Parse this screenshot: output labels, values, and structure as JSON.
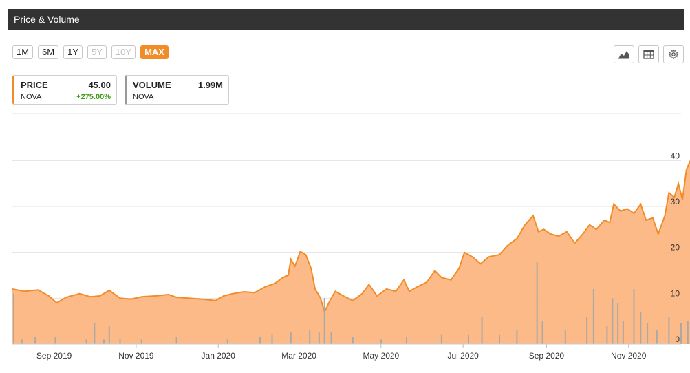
{
  "header": {
    "title": "Price & Volume"
  },
  "ranges": [
    {
      "label": "1M",
      "state": "normal"
    },
    {
      "label": "6M",
      "state": "normal"
    },
    {
      "label": "1Y",
      "state": "normal"
    },
    {
      "label": "5Y",
      "state": "disabled"
    },
    {
      "label": "10Y",
      "state": "disabled"
    },
    {
      "label": "MAX",
      "state": "active"
    }
  ],
  "tools": [
    {
      "name": "area-chart-icon"
    },
    {
      "name": "table-icon"
    },
    {
      "name": "gear-icon"
    }
  ],
  "price_card": {
    "label": "PRICE",
    "value": "45.00",
    "ticker": "NOVA",
    "change": "+275.00%"
  },
  "volume_card": {
    "label": "VOLUME",
    "value": "1.99M",
    "ticker": "NOVA"
  },
  "colors": {
    "price": "#f28c28",
    "price_fill": "#fbb27a",
    "volume": "#a9a9a9",
    "active": "#f28c28",
    "change_up": "#3a9a12"
  },
  "chart_data": {
    "type": "area",
    "xlim": [
      "2019-08-01",
      "2020-12-10"
    ],
    "ylim": [
      0,
      45
    ],
    "y_ticks": [
      0,
      10,
      20,
      30,
      40
    ],
    "x_ticks": [
      {
        "date": "2019-09-01",
        "label": "Sep 2019"
      },
      {
        "date": "2019-11-01",
        "label": "Nov 2019"
      },
      {
        "date": "2020-01-01",
        "label": "Jan 2020"
      },
      {
        "date": "2020-03-01",
        "label": "Mar 2020"
      },
      {
        "date": "2020-05-01",
        "label": "May 2020"
      },
      {
        "date": "2020-07-01",
        "label": "Jul 2020"
      },
      {
        "date": "2020-09-01",
        "label": "Sep 2020"
      },
      {
        "date": "2020-11-01",
        "label": "Nov 2020"
      }
    ],
    "series": [
      {
        "values": [
          [
            "2019-08-01",
            12.0
          ],
          [
            "2019-08-10",
            11.5
          ],
          [
            "2019-08-20",
            11.8
          ],
          [
            "2019-08-28",
            10.5
          ],
          [
            "2019-09-03",
            9.0
          ],
          [
            "2019-09-10",
            10.2
          ],
          [
            "2019-09-20",
            11.0
          ],
          [
            "2019-09-28",
            10.3
          ],
          [
            "2019-10-05",
            10.5
          ],
          [
            "2019-10-12",
            11.7
          ],
          [
            "2019-10-20",
            10.0
          ],
          [
            "2019-10-28",
            9.8
          ],
          [
            "2019-11-05",
            10.3
          ],
          [
            "2019-11-15",
            10.5
          ],
          [
            "2019-11-25",
            10.8
          ],
          [
            "2019-12-01",
            10.2
          ],
          [
            "2019-12-10",
            10.0
          ],
          [
            "2019-12-20",
            9.8
          ],
          [
            "2019-12-30",
            9.5
          ],
          [
            "2020-01-05",
            10.5
          ],
          [
            "2020-01-12",
            11.0
          ],
          [
            "2020-01-20",
            11.4
          ],
          [
            "2020-01-28",
            11.2
          ],
          [
            "2020-02-05",
            12.5
          ],
          [
            "2020-02-12",
            13.2
          ],
          [
            "2020-02-18",
            14.5
          ],
          [
            "2020-02-22",
            15.0
          ],
          [
            "2020-02-24",
            18.5
          ],
          [
            "2020-02-27",
            17.0
          ],
          [
            "2020-03-02",
            20.2
          ],
          [
            "2020-03-06",
            19.5
          ],
          [
            "2020-03-10",
            16.5
          ],
          [
            "2020-03-13",
            12.0
          ],
          [
            "2020-03-17",
            10.0
          ],
          [
            "2020-03-20",
            7.0
          ],
          [
            "2020-03-24",
            9.5
          ],
          [
            "2020-03-28",
            11.5
          ],
          [
            "2020-04-03",
            10.5
          ],
          [
            "2020-04-10",
            9.5
          ],
          [
            "2020-04-17",
            11.0
          ],
          [
            "2020-04-22",
            13.0
          ],
          [
            "2020-04-28",
            10.5
          ],
          [
            "2020-05-05",
            12.0
          ],
          [
            "2020-05-12",
            11.5
          ],
          [
            "2020-05-18",
            14.0
          ],
          [
            "2020-05-22",
            11.5
          ],
          [
            "2020-05-28",
            12.5
          ],
          [
            "2020-06-04",
            13.5
          ],
          [
            "2020-06-10",
            16.0
          ],
          [
            "2020-06-15",
            14.5
          ],
          [
            "2020-06-22",
            14.0
          ],
          [
            "2020-06-28",
            16.5
          ],
          [
            "2020-07-02",
            20.0
          ],
          [
            "2020-07-08",
            19.0
          ],
          [
            "2020-07-14",
            17.5
          ],
          [
            "2020-07-20",
            19.0
          ],
          [
            "2020-07-28",
            19.5
          ],
          [
            "2020-08-03",
            21.5
          ],
          [
            "2020-08-10",
            23.0
          ],
          [
            "2020-08-16",
            26.0
          ],
          [
            "2020-08-22",
            28.0
          ],
          [
            "2020-08-26",
            24.5
          ],
          [
            "2020-08-30",
            25.0
          ],
          [
            "2020-09-04",
            24.0
          ],
          [
            "2020-09-10",
            23.5
          ],
          [
            "2020-09-16",
            24.5
          ],
          [
            "2020-09-22",
            22.0
          ],
          [
            "2020-09-28",
            24.0
          ],
          [
            "2020-10-03",
            26.0
          ],
          [
            "2020-10-08",
            25.0
          ],
          [
            "2020-10-14",
            27.0
          ],
          [
            "2020-10-18",
            26.5
          ],
          [
            "2020-10-21",
            30.5
          ],
          [
            "2020-10-26",
            29.0
          ],
          [
            "2020-10-31",
            29.5
          ],
          [
            "2020-11-05",
            28.5
          ],
          [
            "2020-11-10",
            30.5
          ],
          [
            "2020-11-14",
            27.0
          ],
          [
            "2020-11-19",
            27.5
          ],
          [
            "2020-11-23",
            24.0
          ],
          [
            "2020-11-28",
            28.0
          ],
          [
            "2020-12-01",
            33.0
          ],
          [
            "2020-12-05",
            32.0
          ],
          [
            "2020-12-08",
            35.0
          ],
          [
            "2020-12-11",
            31.5
          ],
          [
            "2020-12-14",
            38.0
          ],
          [
            "2020-12-17",
            40.0
          ],
          [
            "2020-12-20",
            45.0
          ]
        ]
      },
      {
        "values": [
          [
            "2019-08-02",
            11.0
          ],
          [
            "2019-08-08",
            1.0
          ],
          [
            "2019-08-18",
            1.5
          ],
          [
            "2019-09-02",
            1.5
          ],
          [
            "2019-09-25",
            1.0
          ],
          [
            "2019-10-01",
            4.5
          ],
          [
            "2019-10-08",
            1.0
          ],
          [
            "2019-10-12",
            4.0
          ],
          [
            "2019-10-20",
            1.0
          ],
          [
            "2019-11-05",
            1.0
          ],
          [
            "2019-12-01",
            1.5
          ],
          [
            "2020-01-08",
            1.0
          ],
          [
            "2020-02-01",
            1.5
          ],
          [
            "2020-02-10",
            2.0
          ],
          [
            "2020-02-24",
            2.5
          ],
          [
            "2020-03-09",
            3.0
          ],
          [
            "2020-03-16",
            2.5
          ],
          [
            "2020-03-20",
            10.0
          ],
          [
            "2020-03-25",
            2.5
          ],
          [
            "2020-04-10",
            1.5
          ],
          [
            "2020-05-01",
            1.0
          ],
          [
            "2020-05-20",
            1.5
          ],
          [
            "2020-06-15",
            2.0
          ],
          [
            "2020-07-05",
            2.0
          ],
          [
            "2020-07-15",
            6.0
          ],
          [
            "2020-07-28",
            2.0
          ],
          [
            "2020-08-10",
            3.0
          ],
          [
            "2020-08-25",
            18.0
          ],
          [
            "2020-08-29",
            5.0
          ],
          [
            "2020-09-15",
            3.0
          ],
          [
            "2020-10-01",
            6.0
          ],
          [
            "2020-10-06",
            12.0
          ],
          [
            "2020-10-16",
            4.0
          ],
          [
            "2020-10-20",
            10.0
          ],
          [
            "2020-10-24",
            9.0
          ],
          [
            "2020-10-28",
            5.0
          ],
          [
            "2020-11-05",
            12.0
          ],
          [
            "2020-11-10",
            7.0
          ],
          [
            "2020-11-15",
            4.5
          ],
          [
            "2020-11-22",
            3.0
          ],
          [
            "2020-12-01",
            6.0
          ],
          [
            "2020-12-10",
            4.5
          ],
          [
            "2020-12-15",
            5.0
          ],
          [
            "2020-12-20",
            7.0
          ]
        ]
      }
    ],
    "grid": "horizontal",
    "legend": "none"
  }
}
